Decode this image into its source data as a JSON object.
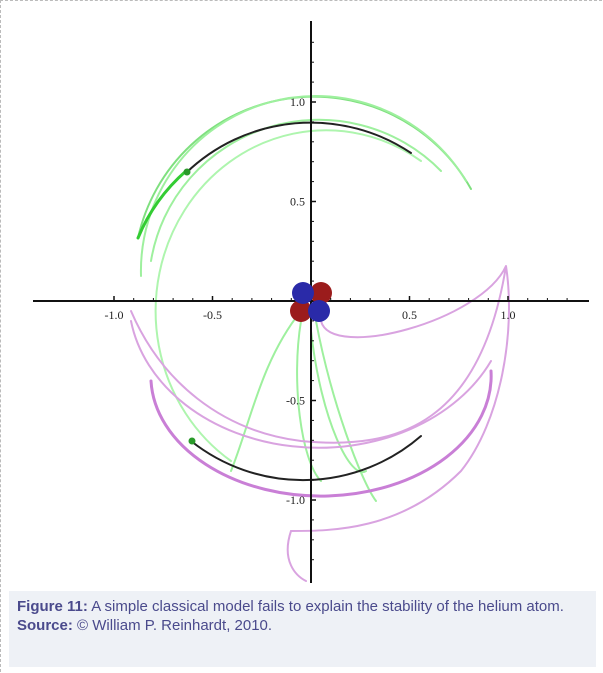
{
  "figure": {
    "xticks": [
      {
        "value": -1.0,
        "label": "-1.0"
      },
      {
        "value": -0.5,
        "label": "-0.5"
      },
      {
        "value": 0.5,
        "label": "0.5"
      },
      {
        "value": 1.0,
        "label": "1.0"
      }
    ],
    "yticks": [
      {
        "value": 1.0,
        "label": "1.0"
      },
      {
        "value": 0.5,
        "label": "0.5"
      },
      {
        "value": -0.5,
        "label": "-0.5"
      },
      {
        "value": -1.0,
        "label": "-1.0"
      }
    ]
  },
  "caption": {
    "label": "Figure 11:",
    "text": "A simple classical model fails to explain the stability of the helium atom.",
    "source_label": "Source:",
    "source_text": "© William P. Reinhardt, 2010."
  }
}
